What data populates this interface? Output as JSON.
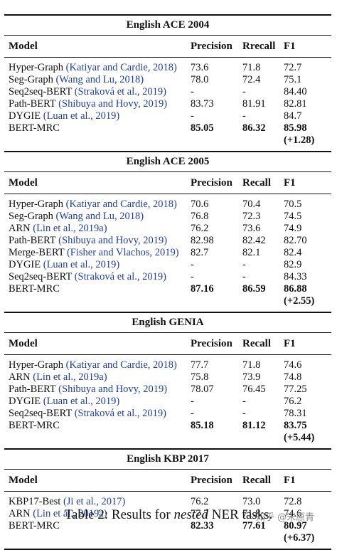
{
  "sections": [
    {
      "title": "English ACE 2004",
      "header": {
        "model": "Model",
        "precision": "Precision",
        "recall": "Rrecall",
        "f1": "F1"
      },
      "rows": [
        {
          "model": "Hyper-Graph",
          "cite": "(Katiyar and Cardie, 2018)",
          "precision": "73.6",
          "recall": "71.8",
          "f1": "72.7"
        },
        {
          "model": "Seg-Graph",
          "cite": "(Wang and Lu, 2018)",
          "precision": "78.0",
          "recall": "72.4",
          "f1": "75.1"
        },
        {
          "model": "Seq2seq-BERT",
          "cite": "(Straková et al., 2019)",
          "precision": "-",
          "recall": "-",
          "f1": "84.40"
        },
        {
          "model": "Path-BERT",
          "cite": "(Shibuya and Hovy, 2019)",
          "precision": "83.73",
          "recall": "81.91",
          "f1": "82.81"
        },
        {
          "model": "DYGIE",
          "cite": "(Luan et al., 2019)",
          "precision": "-",
          "recall": "-",
          "f1": "84.7"
        },
        {
          "model": "BERT-MRC",
          "cite": "",
          "precision": "85.05",
          "recall": "86.32",
          "f1": "85.98",
          "delta": "(+1.28)",
          "bold": true
        }
      ]
    },
    {
      "title": "English ACE 2005",
      "header": {
        "model": "Model",
        "precision": "Precision",
        "recall": "Recall",
        "f1": "F1"
      },
      "rows": [
        {
          "model": "Hyper-Graph",
          "cite": "(Katiyar and Cardie, 2018)",
          "precision": "70.6",
          "recall": "70.4",
          "f1": "70.5"
        },
        {
          "model": "Seg-Graph",
          "cite": "(Wang and Lu, 2018)",
          "precision": "76.8",
          "recall": "72.3",
          "f1": "74.5"
        },
        {
          "model": "ARN",
          "cite": "(Lin et al., 2019a)",
          "precision": "76.2",
          "recall": "73.6",
          "f1": "74.9"
        },
        {
          "model": "Path-BERT",
          "cite": "(Shibuya and Hovy, 2019)",
          "precision": "82.98",
          "recall": "82.42",
          "f1": "82.70"
        },
        {
          "model": "Merge-BERT",
          "cite": "(Fisher and Vlachos, 2019)",
          "precision": "82.7",
          "recall": "82.1",
          "f1": "82.4"
        },
        {
          "model": "DYGIE",
          "cite": "(Luan et al., 2019)",
          "precision": "-",
          "recall": "-",
          "f1": "82.9"
        },
        {
          "model": "Seq2seq-BERT",
          "cite": "(Straková et al., 2019)",
          "precision": "-",
          "recall": "-",
          "f1": "84.33"
        },
        {
          "model": "BERT-MRC",
          "cite": "",
          "precision": "87.16",
          "recall": "86.59",
          "f1": "86.88",
          "delta": "(+2.55)",
          "bold": true
        }
      ]
    },
    {
      "title": "English GENIA",
      "header": {
        "model": "Model",
        "precision": "Precision",
        "recall": "Recall",
        "f1": "F1"
      },
      "rows": [
        {
          "model": "Hyper-Graph",
          "cite": "(Katiyar and Cardie, 2018)",
          "precision": "77.7",
          "recall": "71.8",
          "f1": "74.6"
        },
        {
          "model": "ARN",
          "cite": "(Lin et al., 2019a)",
          "precision": "75.8",
          "recall": "73.9",
          "f1": "74.8"
        },
        {
          "model": "Path-BERT",
          "cite": "(Shibuya and Hovy, 2019)",
          "precision": "78.07",
          "recall": "76.45",
          "f1": "77.25"
        },
        {
          "model": "DYGIE",
          "cite": "(Luan et al., 2019)",
          "precision": "-",
          "recall": "-",
          "f1": "76.2"
        },
        {
          "model": "Seq2seq-BERT",
          "cite": "(Straková et al., 2019)",
          "precision": "-",
          "recall": "-",
          "f1": "78.31"
        },
        {
          "model": "BERT-MRC",
          "cite": "",
          "precision": "85.18",
          "recall": "81.12",
          "f1": "83.75",
          "delta": "(+5.44)",
          "bold": true
        }
      ]
    },
    {
      "title": "English KBP 2017",
      "header": {
        "model": "Model",
        "precision": "Precision",
        "recall": "Recall",
        "f1": "F1"
      },
      "rows": [
        {
          "model": "KBP17-Best",
          "cite": "(Ji et al., 2017)",
          "precision": "76.2",
          "recall": "73.0",
          "f1": "72.8"
        },
        {
          "model": "ARN",
          "cite": "(Lin et al., 2019a)",
          "precision": "77.7",
          "recall": "71.8",
          "f1": "74.6"
        },
        {
          "model": "BERT-MRC",
          "cite": "",
          "precision": "82.33",
          "recall": "77.61",
          "f1": "80.97",
          "delta": "(+6.37)",
          "bold": true
        }
      ]
    }
  ],
  "caption": {
    "prefix": "Table 2: Results for ",
    "emph": "nested",
    "suffix": " NER tasks."
  },
  "watermark": "知乎 @宋原青",
  "colors": {
    "citation": "#1f3fa8",
    "text": "#111111"
  }
}
